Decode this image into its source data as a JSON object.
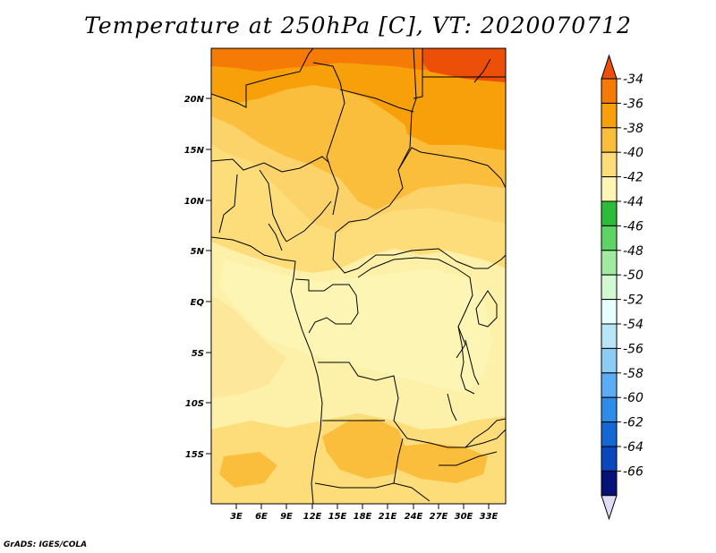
{
  "title": "Temperature at 250hPa [C], VT: 2020070712",
  "credit": "GrADS: IGES/COLA",
  "map": {
    "lat_labels": [
      "20N",
      "15N",
      "10N",
      "5N",
      "EQ",
      "5S",
      "10S",
      "15S"
    ],
    "lon_labels": [
      "3E",
      "6E",
      "9E",
      "12E",
      "15E",
      "18E",
      "21E",
      "24E",
      "27E",
      "30E",
      "33E"
    ]
  },
  "colorbar": {
    "labels": [
      "-34",
      "-36",
      "-38",
      "-40",
      "-42",
      "-44",
      "-46",
      "-48",
      "-50",
      "-52",
      "-54",
      "-56",
      "-58",
      "-60",
      "-62",
      "-64",
      "-66"
    ],
    "colors": [
      "#ec4f08",
      "#f67a06",
      "#f8a00a",
      "#fbbd3c",
      "#fcdd7a",
      "#fdf5b4",
      "#2dbb3a",
      "#5ed465",
      "#a0eb9e",
      "#d2fad2",
      "#e6ffff",
      "#b9e6f6",
      "#8ccdf6",
      "#5aadf4",
      "#2d8de8",
      "#1468d4",
      "#0a46be",
      "#04127a",
      "#e0dcf8"
    ]
  },
  "colors": {
    "level_minus36_to_minus34": "#f67a06",
    "level_minus38_to_minus36": "#f8a00a",
    "level_minus40_to_minus38": "#fbbd3c",
    "level_minus42_to_minus40": "#fcdd7a",
    "level_minus44_to_minus42": "#fdf5b4"
  }
}
